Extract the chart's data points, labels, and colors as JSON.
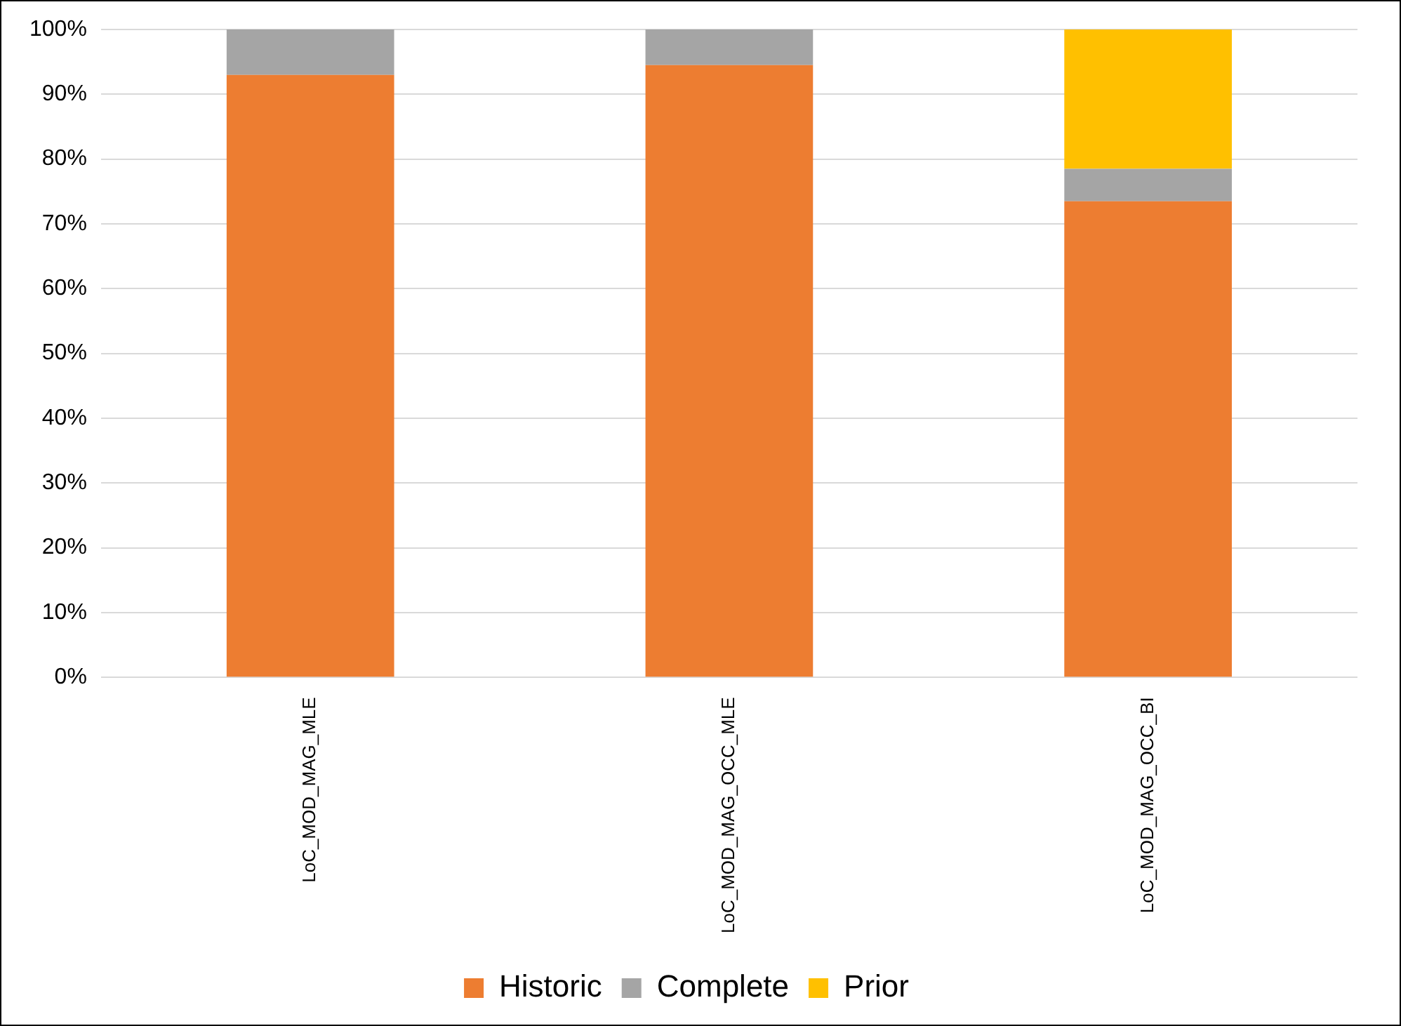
{
  "chart_data": {
    "type": "bar",
    "stacked": true,
    "categories": [
      "LoC_MOD_MAG_MLE",
      "LoC_MOD_MAG_OCC_MLE",
      "LoC_MOD_MAG_OCC_BI"
    ],
    "series": [
      {
        "name": "Historic",
        "color": "#ed7d31",
        "values": [
          93,
          94.5,
          73.5
        ]
      },
      {
        "name": "Complete",
        "color": "#a5a5a5",
        "values": [
          7,
          5.5,
          5
        ]
      },
      {
        "name": "Prior",
        "color": "#ffc000",
        "values": [
          0,
          0,
          21.5
        ]
      }
    ],
    "ylim": [
      0,
      100
    ],
    "yticks": [
      {
        "value": 0,
        "label": "0%"
      },
      {
        "value": 10,
        "label": "10%"
      },
      {
        "value": 20,
        "label": "20%"
      },
      {
        "value": 30,
        "label": "30%"
      },
      {
        "value": 40,
        "label": "40%"
      },
      {
        "value": 50,
        "label": "50%"
      },
      {
        "value": 60,
        "label": "60%"
      },
      {
        "value": 70,
        "label": "70%"
      },
      {
        "value": 80,
        "label": "80%"
      },
      {
        "value": 90,
        "label": "90%"
      },
      {
        "value": 100,
        "label": "100%"
      }
    ],
    "grid": "y",
    "legend": "bottom"
  }
}
